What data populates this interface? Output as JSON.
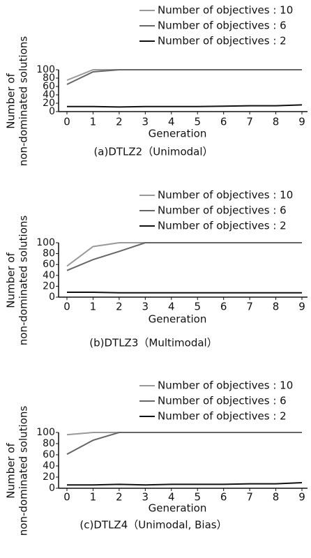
{
  "chart_data": [
    {
      "type": "line",
      "caption": "(a)DTLZ2（Unimodal）",
      "xlabel": "Generation",
      "ylabel": [
        "Number of",
        "non-dominated solutions"
      ],
      "x": [
        0,
        1,
        2,
        3,
        4,
        5,
        6,
        7,
        8,
        9
      ],
      "xlim": [
        0,
        9
      ],
      "ylim": [
        0,
        100
      ],
      "yticks": [
        0,
        20,
        40,
        60,
        80,
        100
      ],
      "series": [
        {
          "name": "Number of objectives : 10",
          "color": "#999999",
          "values": [
            75,
            100,
            100,
            100,
            100,
            100,
            100,
            100,
            100,
            100
          ]
        },
        {
          "name": "Number of objectives : 6",
          "color": "#666666",
          "values": [
            65,
            95,
            100,
            100,
            100,
            100,
            100,
            100,
            100,
            100
          ]
        },
        {
          "name": "Number of objectives : 2",
          "color": "#111111",
          "values": [
            12,
            12,
            11,
            12,
            12,
            12,
            13,
            14,
            14,
            16
          ]
        }
      ]
    },
    {
      "type": "line",
      "caption": "(b)DTLZ3（Multimodal）",
      "xlabel": "Generation",
      "ylabel": [
        "Number of",
        "non-dominated solutions"
      ],
      "x": [
        0,
        1,
        2,
        3,
        4,
        5,
        6,
        7,
        8,
        9
      ],
      "xlim": [
        0,
        9
      ],
      "ylim": [
        0,
        100
      ],
      "yticks": [
        0,
        20,
        40,
        60,
        80,
        100
      ],
      "series": [
        {
          "name": "Number of objectives : 10",
          "color": "#999999",
          "values": [
            57,
            93,
            100,
            100,
            100,
            100,
            100,
            100,
            100,
            100
          ]
        },
        {
          "name": "Number of objectives : 6",
          "color": "#666666",
          "values": [
            49,
            69,
            84,
            100,
            100,
            100,
            100,
            100,
            100,
            100
          ]
        },
        {
          "name": "Number of objectives : 2",
          "color": "#111111",
          "values": [
            9,
            9,
            8,
            8,
            8,
            8,
            8,
            8,
            8,
            8
          ]
        }
      ]
    },
    {
      "type": "line",
      "caption": "(c)DTLZ4（Unimodal, Bias）",
      "xlabel": "Generation",
      "ylabel": [
        "Number of",
        "non-dominated solutions"
      ],
      "x": [
        0,
        1,
        2,
        3,
        4,
        5,
        6,
        7,
        8,
        9
      ],
      "xlim": [
        0,
        9
      ],
      "ylim": [
        0,
        100
      ],
      "yticks": [
        0,
        20,
        40,
        60,
        80,
        100
      ],
      "series": [
        {
          "name": "Number of objectives : 10",
          "color": "#999999",
          "values": [
            96,
            100,
            100,
            100,
            100,
            100,
            100,
            100,
            100,
            100
          ]
        },
        {
          "name": "Number of objectives : 6",
          "color": "#666666",
          "values": [
            61,
            86,
            100,
            100,
            100,
            100,
            100,
            100,
            100,
            100
          ]
        },
        {
          "name": "Number of objectives : 2",
          "color": "#111111",
          "values": [
            6,
            6,
            7,
            6,
            7,
            7,
            7,
            8,
            8,
            10
          ]
        }
      ]
    }
  ]
}
